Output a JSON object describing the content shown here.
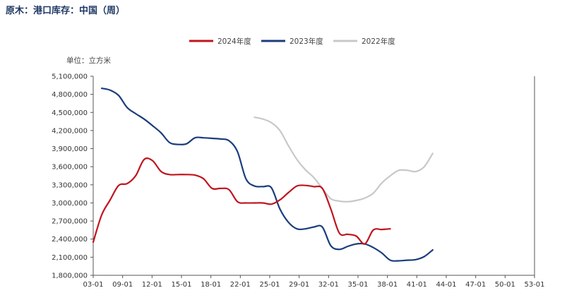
{
  "title": "原木：港口库存：中国（周）",
  "chart_data": {
    "type": "line",
    "unit_label": "单位：立方米",
    "x_ticks": [
      "03-01",
      "09-01",
      "12-01",
      "15-01",
      "18-01",
      "22-01",
      "25-01",
      "29-01",
      "32-01",
      "35-01",
      "38-01",
      "41-01",
      "44-01",
      "47-01",
      "50-01",
      "53-01"
    ],
    "xlim": [
      1,
      53
    ],
    "ylim": [
      1800000,
      5100000
    ],
    "y_ticks": [
      1800000,
      2100000,
      2400000,
      2700000,
      3000000,
      3300000,
      3600000,
      3900000,
      4200000,
      4500000,
      4800000,
      5100000
    ],
    "y_tick_labels": [
      "1,800,000",
      "2,100,000",
      "2,400,000",
      "2,700,000",
      "3,000,000",
      "3,300,000",
      "3,600,000",
      "3,900,000",
      "4,200,000",
      "4,500,000",
      "4,800,000",
      "5,100,000"
    ],
    "legend_position": "top",
    "series": [
      {
        "name": "2024年度",
        "color": "#c0141e",
        "points": [
          [
            1,
            2350000
          ],
          [
            2,
            2800000
          ],
          [
            3,
            3050000
          ],
          [
            4,
            3290000
          ],
          [
            5,
            3320000
          ],
          [
            6,
            3450000
          ],
          [
            7,
            3720000
          ],
          [
            8,
            3700000
          ],
          [
            9,
            3520000
          ],
          [
            10,
            3470000
          ],
          [
            11,
            3470000
          ],
          [
            12,
            3470000
          ],
          [
            13,
            3460000
          ],
          [
            14,
            3400000
          ],
          [
            15,
            3240000
          ],
          [
            16,
            3240000
          ],
          [
            17,
            3220000
          ],
          [
            18,
            3020000
          ],
          [
            19,
            3000000
          ],
          [
            20,
            3000000
          ],
          [
            21,
            3000000
          ],
          [
            22,
            2980000
          ],
          [
            23,
            3050000
          ],
          [
            24,
            3170000
          ],
          [
            25,
            3280000
          ],
          [
            26,
            3290000
          ],
          [
            27,
            3270000
          ],
          [
            28,
            3240000
          ],
          [
            29,
            2900000
          ],
          [
            30,
            2500000
          ],
          [
            31,
            2480000
          ],
          [
            32,
            2450000
          ],
          [
            33,
            2320000
          ],
          [
            34,
            2550000
          ],
          [
            35,
            2560000
          ],
          [
            36,
            2570000
          ]
        ]
      },
      {
        "name": "2023年度",
        "color": "#1a3d7c",
        "points": [
          [
            2,
            4900000
          ],
          [
            3,
            4870000
          ],
          [
            4,
            4780000
          ],
          [
            5,
            4580000
          ],
          [
            6,
            4480000
          ],
          [
            7,
            4390000
          ],
          [
            8,
            4280000
          ],
          [
            9,
            4160000
          ],
          [
            10,
            4000000
          ],
          [
            11,
            3970000
          ],
          [
            12,
            3980000
          ],
          [
            13,
            4080000
          ],
          [
            14,
            4080000
          ],
          [
            15,
            4070000
          ],
          [
            16,
            4060000
          ],
          [
            17,
            4030000
          ],
          [
            18,
            3850000
          ],
          [
            19,
            3400000
          ],
          [
            20,
            3280000
          ],
          [
            21,
            3270000
          ],
          [
            22,
            3250000
          ],
          [
            23,
            2900000
          ],
          [
            24,
            2680000
          ],
          [
            25,
            2570000
          ],
          [
            26,
            2570000
          ],
          [
            27,
            2600000
          ],
          [
            28,
            2600000
          ],
          [
            29,
            2290000
          ],
          [
            30,
            2230000
          ],
          [
            31,
            2280000
          ],
          [
            32,
            2320000
          ],
          [
            33,
            2320000
          ],
          [
            34,
            2260000
          ],
          [
            35,
            2170000
          ],
          [
            36,
            2050000
          ],
          [
            37,
            2040000
          ],
          [
            38,
            2050000
          ],
          [
            39,
            2060000
          ],
          [
            40,
            2110000
          ],
          [
            41,
            2220000
          ]
        ]
      },
      {
        "name": "2022年度",
        "color": "#c8c8c8",
        "points": [
          [
            20,
            4420000
          ],
          [
            21,
            4390000
          ],
          [
            22,
            4330000
          ],
          [
            23,
            4200000
          ],
          [
            24,
            3950000
          ],
          [
            25,
            3720000
          ],
          [
            26,
            3550000
          ],
          [
            27,
            3420000
          ],
          [
            28,
            3240000
          ],
          [
            29,
            3070000
          ],
          [
            30,
            3030000
          ],
          [
            31,
            3020000
          ],
          [
            32,
            3040000
          ],
          [
            33,
            3080000
          ],
          [
            34,
            3160000
          ],
          [
            35,
            3330000
          ],
          [
            36,
            3450000
          ],
          [
            37,
            3540000
          ],
          [
            38,
            3540000
          ],
          [
            39,
            3520000
          ],
          [
            40,
            3600000
          ],
          [
            41,
            3820000
          ]
        ]
      }
    ]
  }
}
